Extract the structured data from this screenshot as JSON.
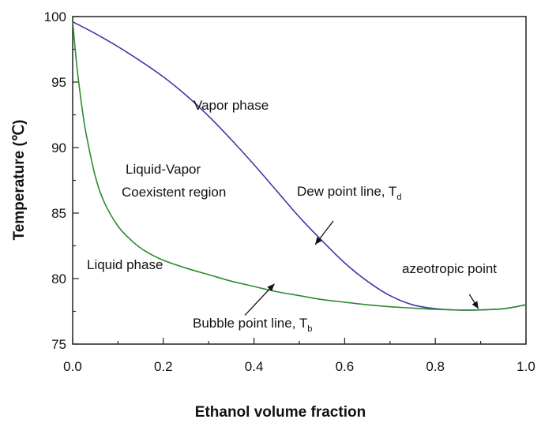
{
  "chart_data": {
    "type": "line",
    "title": "",
    "xlabel": "Ethanol volume fraction",
    "ylabel": "Temperature (℃)",
    "xlim": [
      0.0,
      1.0
    ],
    "ylim": [
      75,
      100
    ],
    "x_ticks": [
      0.0,
      0.2,
      0.4,
      0.6,
      0.8,
      1.0
    ],
    "x_tick_labels": [
      "0.0",
      "0.2",
      "0.4",
      "0.6",
      "0.8",
      "1.0"
    ],
    "y_ticks": [
      75,
      80,
      85,
      90,
      95,
      100
    ],
    "y_tick_labels": [
      "75",
      "80",
      "85",
      "90",
      "95",
      "100"
    ],
    "grid": false,
    "series": [
      {
        "name": "Dew point line, Td",
        "color": "#3a3aa8",
        "x": [
          0.0,
          0.05,
          0.1,
          0.15,
          0.2,
          0.25,
          0.3,
          0.35,
          0.4,
          0.45,
          0.5,
          0.55,
          0.6,
          0.65,
          0.7,
          0.75,
          0.8,
          0.85,
          0.89,
          0.95,
          1.0
        ],
        "y": [
          99.6,
          98.7,
          97.7,
          96.6,
          95.4,
          94.0,
          92.4,
          90.6,
          88.7,
          86.7,
          84.7,
          82.9,
          81.2,
          79.8,
          78.7,
          78.0,
          77.7,
          77.6,
          77.6,
          77.7,
          78.0
        ]
      },
      {
        "name": "Bubble point line, Tb",
        "color": "#2e8b2e",
        "x": [
          0.0,
          0.01,
          0.02,
          0.03,
          0.05,
          0.07,
          0.1,
          0.13,
          0.16,
          0.2,
          0.25,
          0.3,
          0.35,
          0.4,
          0.45,
          0.5,
          0.55,
          0.6,
          0.65,
          0.7,
          0.75,
          0.8,
          0.85,
          0.89,
          0.95,
          1.0
        ],
        "y": [
          99.6,
          96.0,
          93.2,
          91.0,
          87.8,
          85.8,
          84.0,
          82.9,
          82.1,
          81.4,
          80.8,
          80.3,
          79.8,
          79.4,
          79.0,
          78.7,
          78.4,
          78.2,
          78.0,
          77.85,
          77.75,
          77.65,
          77.6,
          77.6,
          77.7,
          78.0
        ]
      }
    ],
    "annotations": {
      "vapor_phase": "Vapor phase",
      "coexistent_line1": "Liquid-Vapor",
      "coexistent_line2": "Coexistent region",
      "liquid_phase": "Liquid phase",
      "dew_label": "Dew point line, T",
      "dew_sub": "d",
      "bubble_label": "Bubble point line, T",
      "bubble_sub": "b",
      "azeotrope_label": "azeotropic point",
      "azeotrope_color": "#d42a2a"
    }
  }
}
